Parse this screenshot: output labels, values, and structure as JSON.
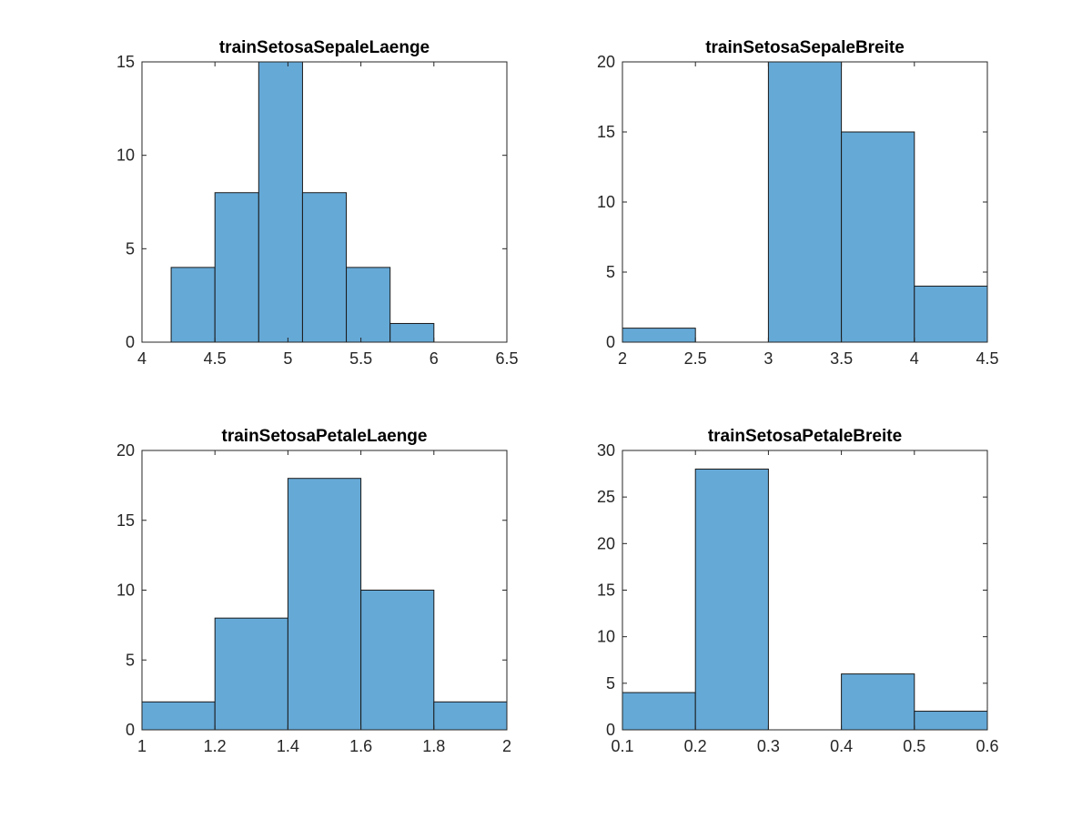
{
  "chart_data": [
    {
      "type": "bar",
      "title": "trainSetosaSepaleLaenge",
      "xlim": [
        4,
        6.5
      ],
      "ylim": [
        0,
        15
      ],
      "xticks": [
        "4",
        "4.5",
        "5",
        "5.5",
        "6",
        "6.5"
      ],
      "yticks": [
        "0",
        "5",
        "10",
        "15"
      ],
      "bin_edges": [
        4.2,
        4.5,
        4.8,
        5.1,
        5.4,
        5.7,
        6.0
      ],
      "values": [
        4,
        8,
        15,
        8,
        4,
        1
      ],
      "grid": false
    },
    {
      "type": "bar",
      "title": "trainSetosaSepaleBreite",
      "xlim": [
        2,
        4.5
      ],
      "ylim": [
        0,
        20
      ],
      "xticks": [
        "2",
        "2.5",
        "3",
        "3.5",
        "4",
        "4.5"
      ],
      "yticks": [
        "0",
        "5",
        "10",
        "15",
        "20"
      ],
      "bin_edges": [
        2.0,
        2.5,
        3.0,
        3.5,
        4.0,
        4.5
      ],
      "values": [
        1,
        0,
        20,
        15,
        4
      ],
      "grid": false
    },
    {
      "type": "bar",
      "title": "trainSetosaPetaleLaenge",
      "xlim": [
        1,
        2
      ],
      "ylim": [
        0,
        20
      ],
      "xticks": [
        "1",
        "1.2",
        "1.4",
        "1.6",
        "1.8",
        "2"
      ],
      "yticks": [
        "0",
        "5",
        "10",
        "15",
        "20"
      ],
      "bin_edges": [
        1.0,
        1.2,
        1.4,
        1.6,
        1.8,
        2.0
      ],
      "values": [
        2,
        8,
        18,
        10,
        2
      ],
      "grid": false
    },
    {
      "type": "bar",
      "title": "trainSetosaPetaleBreite",
      "xlim": [
        0.1,
        0.6
      ],
      "ylim": [
        0,
        30
      ],
      "xticks": [
        "0.1",
        "0.2",
        "0.3",
        "0.4",
        "0.5",
        "0.6"
      ],
      "yticks": [
        "0",
        "5",
        "10",
        "15",
        "20",
        "25",
        "30"
      ],
      "bin_edges": [
        0.1,
        0.2,
        0.3,
        0.4,
        0.5,
        0.6
      ],
      "values": [
        4,
        28,
        0,
        6,
        2
      ],
      "grid": false
    }
  ],
  "colors": {
    "bar_fill": "#65a9d7",
    "bar_edge": "#1a1a1a",
    "axis": "#262626",
    "title": "#000000",
    "background": "#ffffff"
  }
}
